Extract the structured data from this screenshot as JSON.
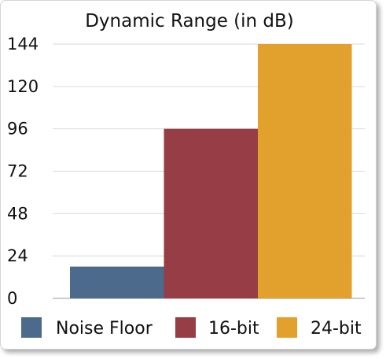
{
  "chart_data": {
    "type": "bar",
    "title": "Dynamic Range (in dB)",
    "xlabel": "",
    "ylabel": "",
    "ylim": [
      0,
      144
    ],
    "yticks": [
      0,
      24,
      48,
      72,
      96,
      120,
      144
    ],
    "grid": true,
    "legend_position": "bottom",
    "categories": [
      "Noise Floor",
      "16-bit",
      "24-bit"
    ],
    "values": [
      18,
      96,
      144
    ],
    "colors": [
      "#4c6a8c",
      "#963d45",
      "#e2a02c"
    ]
  }
}
